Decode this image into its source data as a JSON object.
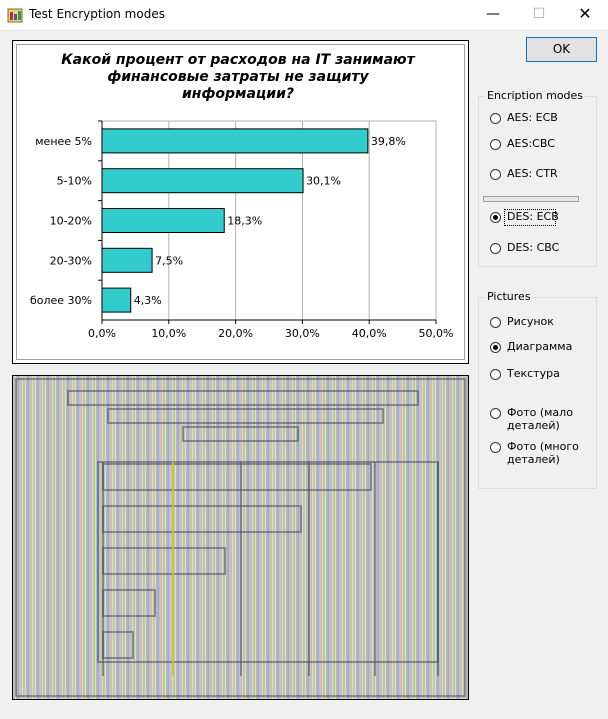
{
  "window": {
    "title": "Test Encryption modes",
    "minimize_glyph": "—",
    "maximize_glyph": "☐",
    "close_glyph": "✕"
  },
  "ok_button": {
    "label": "OK"
  },
  "encryption_modes": {
    "legend": "Encription modes",
    "options": [
      {
        "label": "AES: ECB",
        "checked": false
      },
      {
        "label": "AES:CBC",
        "checked": false
      },
      {
        "label": "AES: CTR",
        "checked": false
      },
      {
        "label": "DES: ECB",
        "checked": true
      },
      {
        "label": "DES: CBC",
        "checked": false
      }
    ]
  },
  "pictures": {
    "legend": "Pictures",
    "options": [
      {
        "label": "Рисунок",
        "checked": false
      },
      {
        "label": "Диаграмма",
        "checked": true
      },
      {
        "label": "Текстура",
        "checked": false
      },
      {
        "label": "Фото (мало деталей)",
        "line1": "Фото (мало",
        "line2": "деталей)",
        "checked": false
      },
      {
        "label": "Фото (много деталей)",
        "line1": "Фото (много",
        "line2": "деталей)",
        "checked": false
      }
    ]
  },
  "chart_data": {
    "type": "bar",
    "orientation": "horizontal",
    "title_lines": [
      "Какой процент от расходов на IT занимают",
      "финансовые затраты не защиту",
      "информации?"
    ],
    "categories": [
      "менее 5%",
      "5-10%",
      "10-20%",
      "20-30%",
      "более 30%"
    ],
    "values": [
      39.8,
      30.1,
      18.3,
      7.5,
      4.3
    ],
    "data_labels": [
      "39,8%",
      "30,1%",
      "18,3%",
      "7,5%",
      "4,3%"
    ],
    "x_ticks": [
      0,
      10,
      20,
      30,
      40,
      50
    ],
    "x_tick_labels": [
      "0,0%",
      "10,0%",
      "20,0%",
      "30,0%",
      "40,0%",
      "50,0%"
    ],
    "xlim": [
      0,
      50
    ],
    "grid": true,
    "bar_color": "#33cccc"
  }
}
